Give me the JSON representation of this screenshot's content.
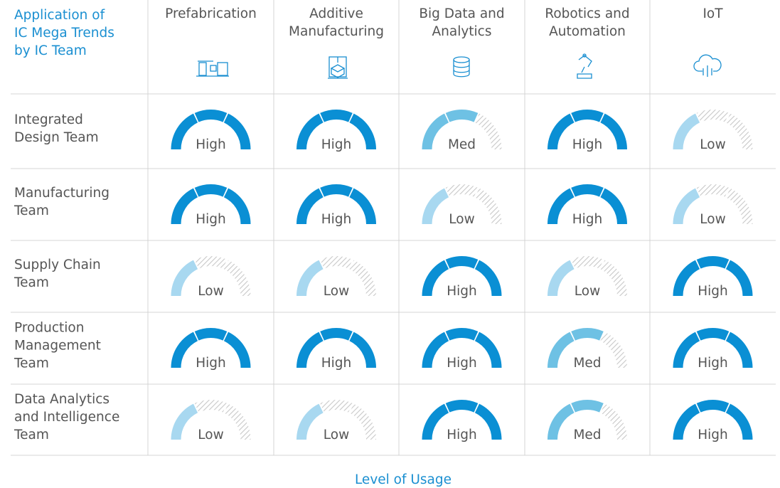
{
  "header": {
    "title": [
      "Application of",
      "IC Mega Trends",
      "by IC Team"
    ]
  },
  "table": {
    "columns": [
      [
        "Prefabrication"
      ],
      [
        "Additive",
        "Manufacturing"
      ],
      [
        "Big Data and",
        "Analytics"
      ],
      [
        "Robotics and",
        "Automation"
      ],
      [
        "IoT"
      ]
    ],
    "rows": [
      {
        "label": [
          "Integrated",
          "Design Team"
        ],
        "cells": [
          {
            "label": "High",
            "value": 3
          },
          {
            "label": "High",
            "value": 3
          },
          {
            "label": "Med",
            "value": 2
          },
          {
            "label": "High",
            "value": 3
          },
          {
            "label": "Low",
            "value": 1
          }
        ]
      },
      {
        "label": [
          "Manufacturing",
          "Team"
        ],
        "cells": [
          {
            "label": "High",
            "value": 3
          },
          {
            "label": "High",
            "value": 3
          },
          {
            "label": "Low",
            "value": 1
          },
          {
            "label": "High",
            "value": 3
          },
          {
            "label": "Low",
            "value": 1
          }
        ]
      },
      {
        "label": [
          "Supply Chain",
          "Team"
        ],
        "cells": [
          {
            "label": "Low",
            "value": 1
          },
          {
            "label": "Low",
            "value": 1
          },
          {
            "label": "High",
            "value": 3
          },
          {
            "label": "Low",
            "value": 1
          },
          {
            "label": "High",
            "value": 3
          }
        ]
      },
      {
        "label": [
          "Production",
          "Management",
          "Team"
        ],
        "cells": [
          {
            "label": "High",
            "value": 3
          },
          {
            "label": "High",
            "value": 3
          },
          {
            "label": "High",
            "value": 3
          },
          {
            "label": "Med",
            "value": 2
          },
          {
            "label": "High",
            "value": 3
          }
        ]
      },
      {
        "label": [
          "Data Analytics",
          "and Intelligence",
          "Team"
        ],
        "cells": [
          {
            "label": "Low",
            "value": 1
          },
          {
            "label": "Low",
            "value": 1
          },
          {
            "label": "High",
            "value": 3
          },
          {
            "label": "Med",
            "value": 2
          },
          {
            "label": "High",
            "value": 3
          }
        ]
      }
    ],
    "segment_colors": [
      "#a8d8f0",
      "#6ec1e4",
      "#0a8fd4"
    ]
  },
  "footer": {
    "label": "Level of Usage"
  }
}
